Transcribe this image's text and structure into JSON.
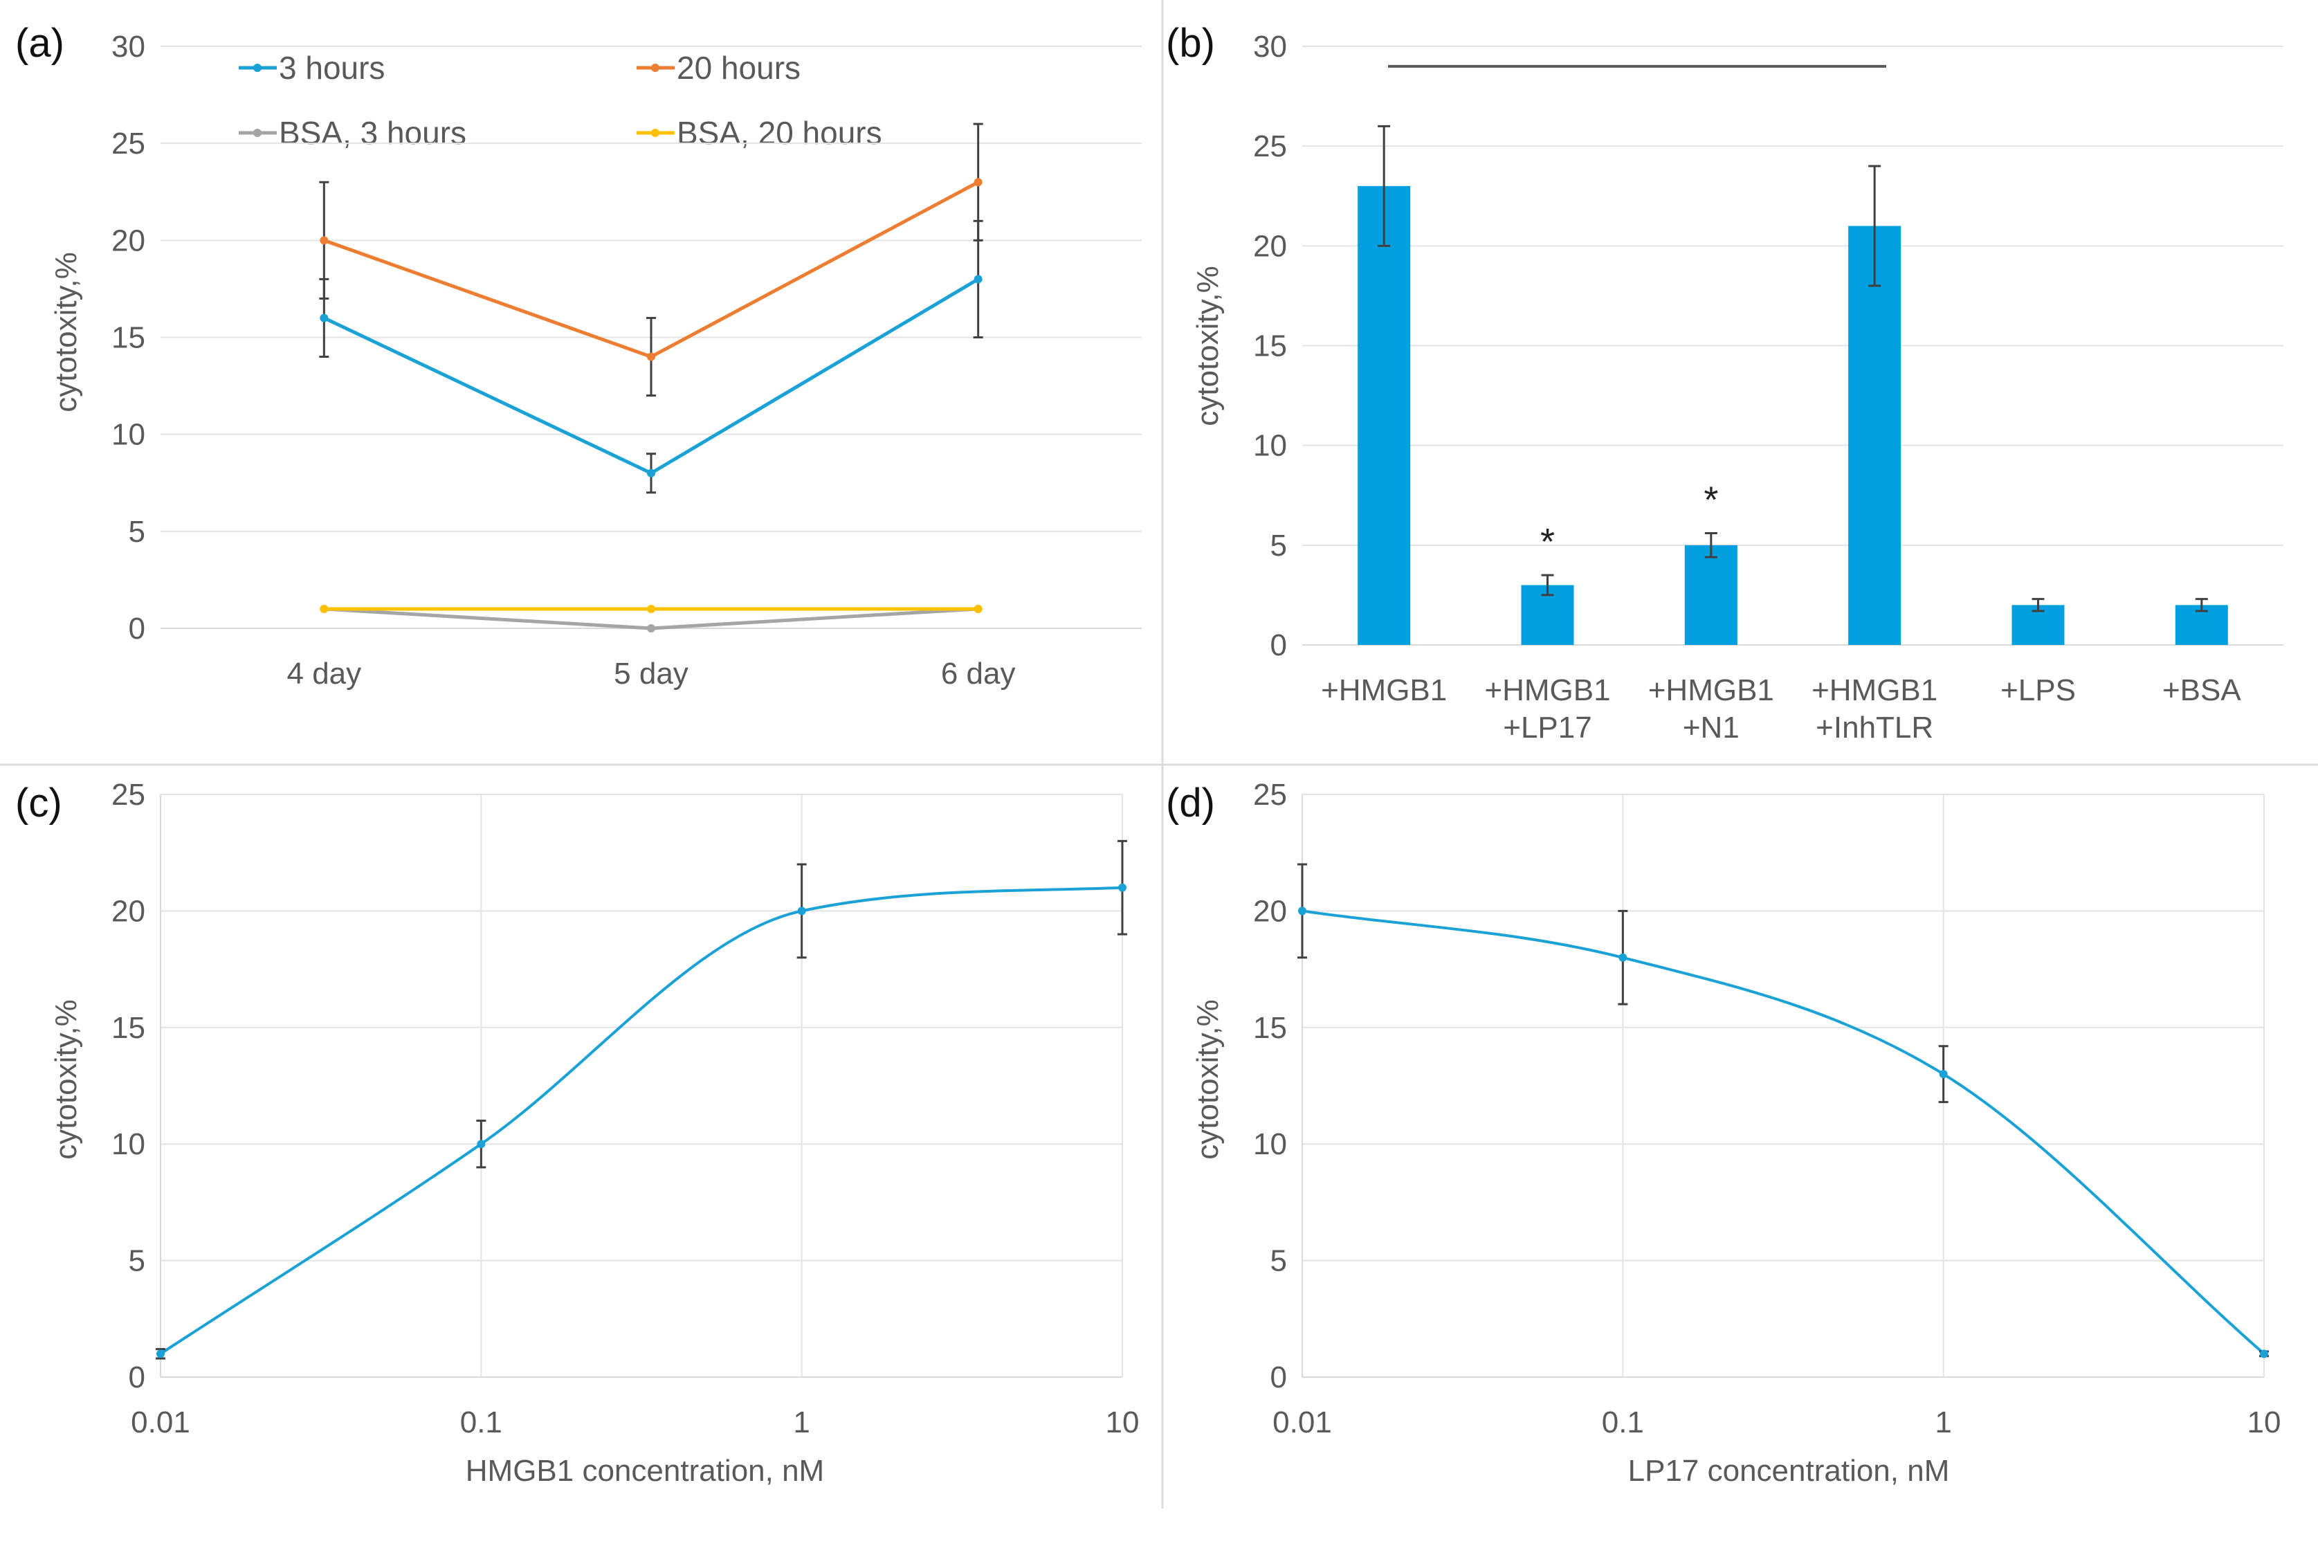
{
  "chart_data": [
    {
      "panel": "(a)",
      "type": "line",
      "categories": [
        "4 day",
        "5 day",
        "6 day"
      ],
      "ylabel": "cytotoxity,%",
      "xlabel": "",
      "ylim": [
        0,
        30
      ],
      "yticks": [
        0,
        5,
        10,
        15,
        20,
        25,
        30
      ],
      "series": [
        {
          "name": "3 hours",
          "color": "#1aa1d6",
          "values": [
            16,
            8,
            18
          ],
          "errors": [
            2,
            1,
            3
          ]
        },
        {
          "name": "20 hours",
          "color": "#ed7d31",
          "values": [
            20,
            14,
            23
          ],
          "errors": [
            3,
            2,
            3
          ]
        },
        {
          "name": "BSA, 3 hours",
          "color": "#a5a5a5",
          "values": [
            1,
            0,
            1
          ],
          "errors": [
            0,
            0,
            0
          ]
        },
        {
          "name": "BSA, 20 hours",
          "color": "#ffc000",
          "values": [
            1,
            1,
            1
          ],
          "errors": [
            0,
            0,
            0
          ]
        }
      ]
    },
    {
      "panel": "(b)",
      "type": "bar",
      "categories": [
        [
          "+HMGB1"
        ],
        [
          "+HMGB1",
          "+LP17"
        ],
        [
          "+HMGB1",
          "+N1"
        ],
        [
          "+HMGB1",
          "+InhTLR"
        ],
        [
          "+LPS"
        ],
        [
          "+BSA"
        ]
      ],
      "values": [
        23,
        3,
        5,
        21,
        2,
        2
      ],
      "errors": [
        3,
        0.5,
        0.6,
        3,
        0.3,
        0.3
      ],
      "significance": [
        "",
        "*",
        "*",
        "",
        "",
        ""
      ],
      "bracket": {
        "from": 0,
        "to": 3,
        "level": 29
      },
      "color": "#00a0e0",
      "ylabel": "cytotoxity,%",
      "xlabel": "",
      "ylim": [
        0,
        30
      ],
      "yticks": [
        0,
        5,
        10,
        15,
        20,
        25,
        30
      ]
    },
    {
      "panel": "(c)",
      "type": "line",
      "xscale": "log",
      "x": [
        0.01,
        0.1,
        1,
        10
      ],
      "xticklabels": [
        "0.01",
        "0.1",
        "1",
        "10"
      ],
      "values": [
        1,
        10,
        20,
        21
      ],
      "errors": [
        0.2,
        1,
        2,
        2
      ],
      "color": "#1aa1d6",
      "ylabel": "cytotoxity,%",
      "xlabel": "HMGB1 concentration, nM",
      "ylim": [
        0,
        25
      ],
      "yticks": [
        0,
        5,
        10,
        15,
        20,
        25
      ]
    },
    {
      "panel": "(d)",
      "type": "line",
      "xscale": "log",
      "x": [
        0.01,
        0.1,
        1,
        10
      ],
      "xticklabels": [
        "0.01",
        "0.1",
        "1",
        "10"
      ],
      "values": [
        20,
        18,
        13,
        1
      ],
      "errors": [
        2,
        2,
        1.2,
        0.1
      ],
      "color": "#1aa1d6",
      "ylabel": "cytotoxity,%",
      "xlabel": "LP17 concentration, nM",
      "ylim": [
        0,
        25
      ],
      "yticks": [
        0,
        5,
        10,
        15,
        20,
        25
      ]
    }
  ]
}
